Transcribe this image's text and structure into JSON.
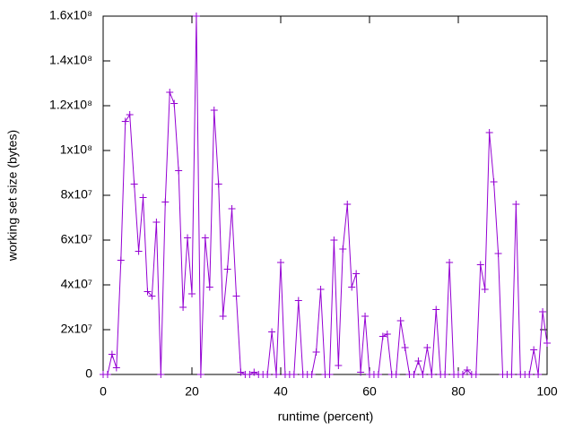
{
  "chart_data": {
    "type": "line",
    "xlabel": "runtime (percent)",
    "ylabel": "working set size (bytes)",
    "color": "#9400d3",
    "x": [
      0,
      1,
      2,
      3,
      4,
      5,
      6,
      7,
      8,
      9,
      10,
      11,
      12,
      13,
      14,
      15,
      16,
      17,
      18,
      19,
      20,
      21,
      22,
      23,
      24,
      25,
      26,
      27,
      28,
      29,
      30,
      31,
      32,
      33,
      34,
      35,
      36,
      37,
      38,
      39,
      40,
      41,
      42,
      43,
      44,
      45,
      46,
      47,
      48,
      49,
      50,
      51,
      52,
      53,
      54,
      55,
      56,
      57,
      58,
      59,
      60,
      61,
      62,
      63,
      64,
      65,
      66,
      67,
      68,
      69,
      70,
      71,
      72,
      73,
      74,
      75,
      76,
      77,
      78,
      79,
      80,
      81,
      82,
      83,
      84,
      85,
      86,
      87,
      88,
      89,
      90,
      91,
      92,
      93,
      94,
      95,
      96,
      97,
      98,
      99,
      100
    ],
    "values": [
      0,
      0,
      9000000,
      3000000,
      51000000,
      113000000,
      116000000,
      85000000,
      55000000,
      79000000,
      37000000,
      35000000,
      68000000,
      0,
      77000000,
      126000000,
      121000000,
      91000000,
      30000000,
      61000000,
      36000000,
      160000000,
      0,
      61000000,
      39000000,
      118000000,
      85000000,
      26000000,
      47000000,
      74000000,
      35000000,
      1000000,
      0,
      0,
      1000000,
      0,
      0,
      0,
      19000000,
      0,
      50000000,
      0,
      0,
      0,
      33000000,
      0,
      0,
      0,
      10000000,
      38000000,
      0,
      0,
      60000000,
      4000000,
      56000000,
      76000000,
      39000000,
      45000000,
      1000000,
      26000000,
      0,
      0,
      0,
      17000000,
      18000000,
      0,
      0,
      24000000,
      12000000,
      0,
      0,
      6000000,
      0,
      12000000,
      0,
      29000000,
      0,
      0,
      50000000,
      0,
      0,
      0,
      2000000,
      0,
      0,
      49000000,
      38000000,
      108000000,
      86000000,
      54000000,
      0,
      0,
      0,
      76000000,
      0,
      0,
      0,
      11000000,
      0,
      28000000,
      14000000
    ],
    "xlim": [
      0,
      100
    ],
    "xticks": [
      0,
      20,
      40,
      60,
      80,
      100
    ],
    "ylim": [
      0,
      160000000
    ],
    "yticks": [
      0,
      {
        "value": 20000000,
        "label": "2x10⁷"
      },
      {
        "value": 40000000,
        "label": "4x10⁷"
      },
      {
        "value": 60000000,
        "label": "6x10⁷"
      },
      {
        "value": 80000000,
        "label": "8x10⁷"
      },
      {
        "value": 100000000,
        "label": "1x10⁸"
      },
      {
        "value": 120000000,
        "label": "1.2x10⁸"
      },
      {
        "value": 140000000,
        "label": "1.4x10⁸"
      },
      {
        "value": 160000000,
        "label": "1.6x10⁸"
      }
    ]
  }
}
